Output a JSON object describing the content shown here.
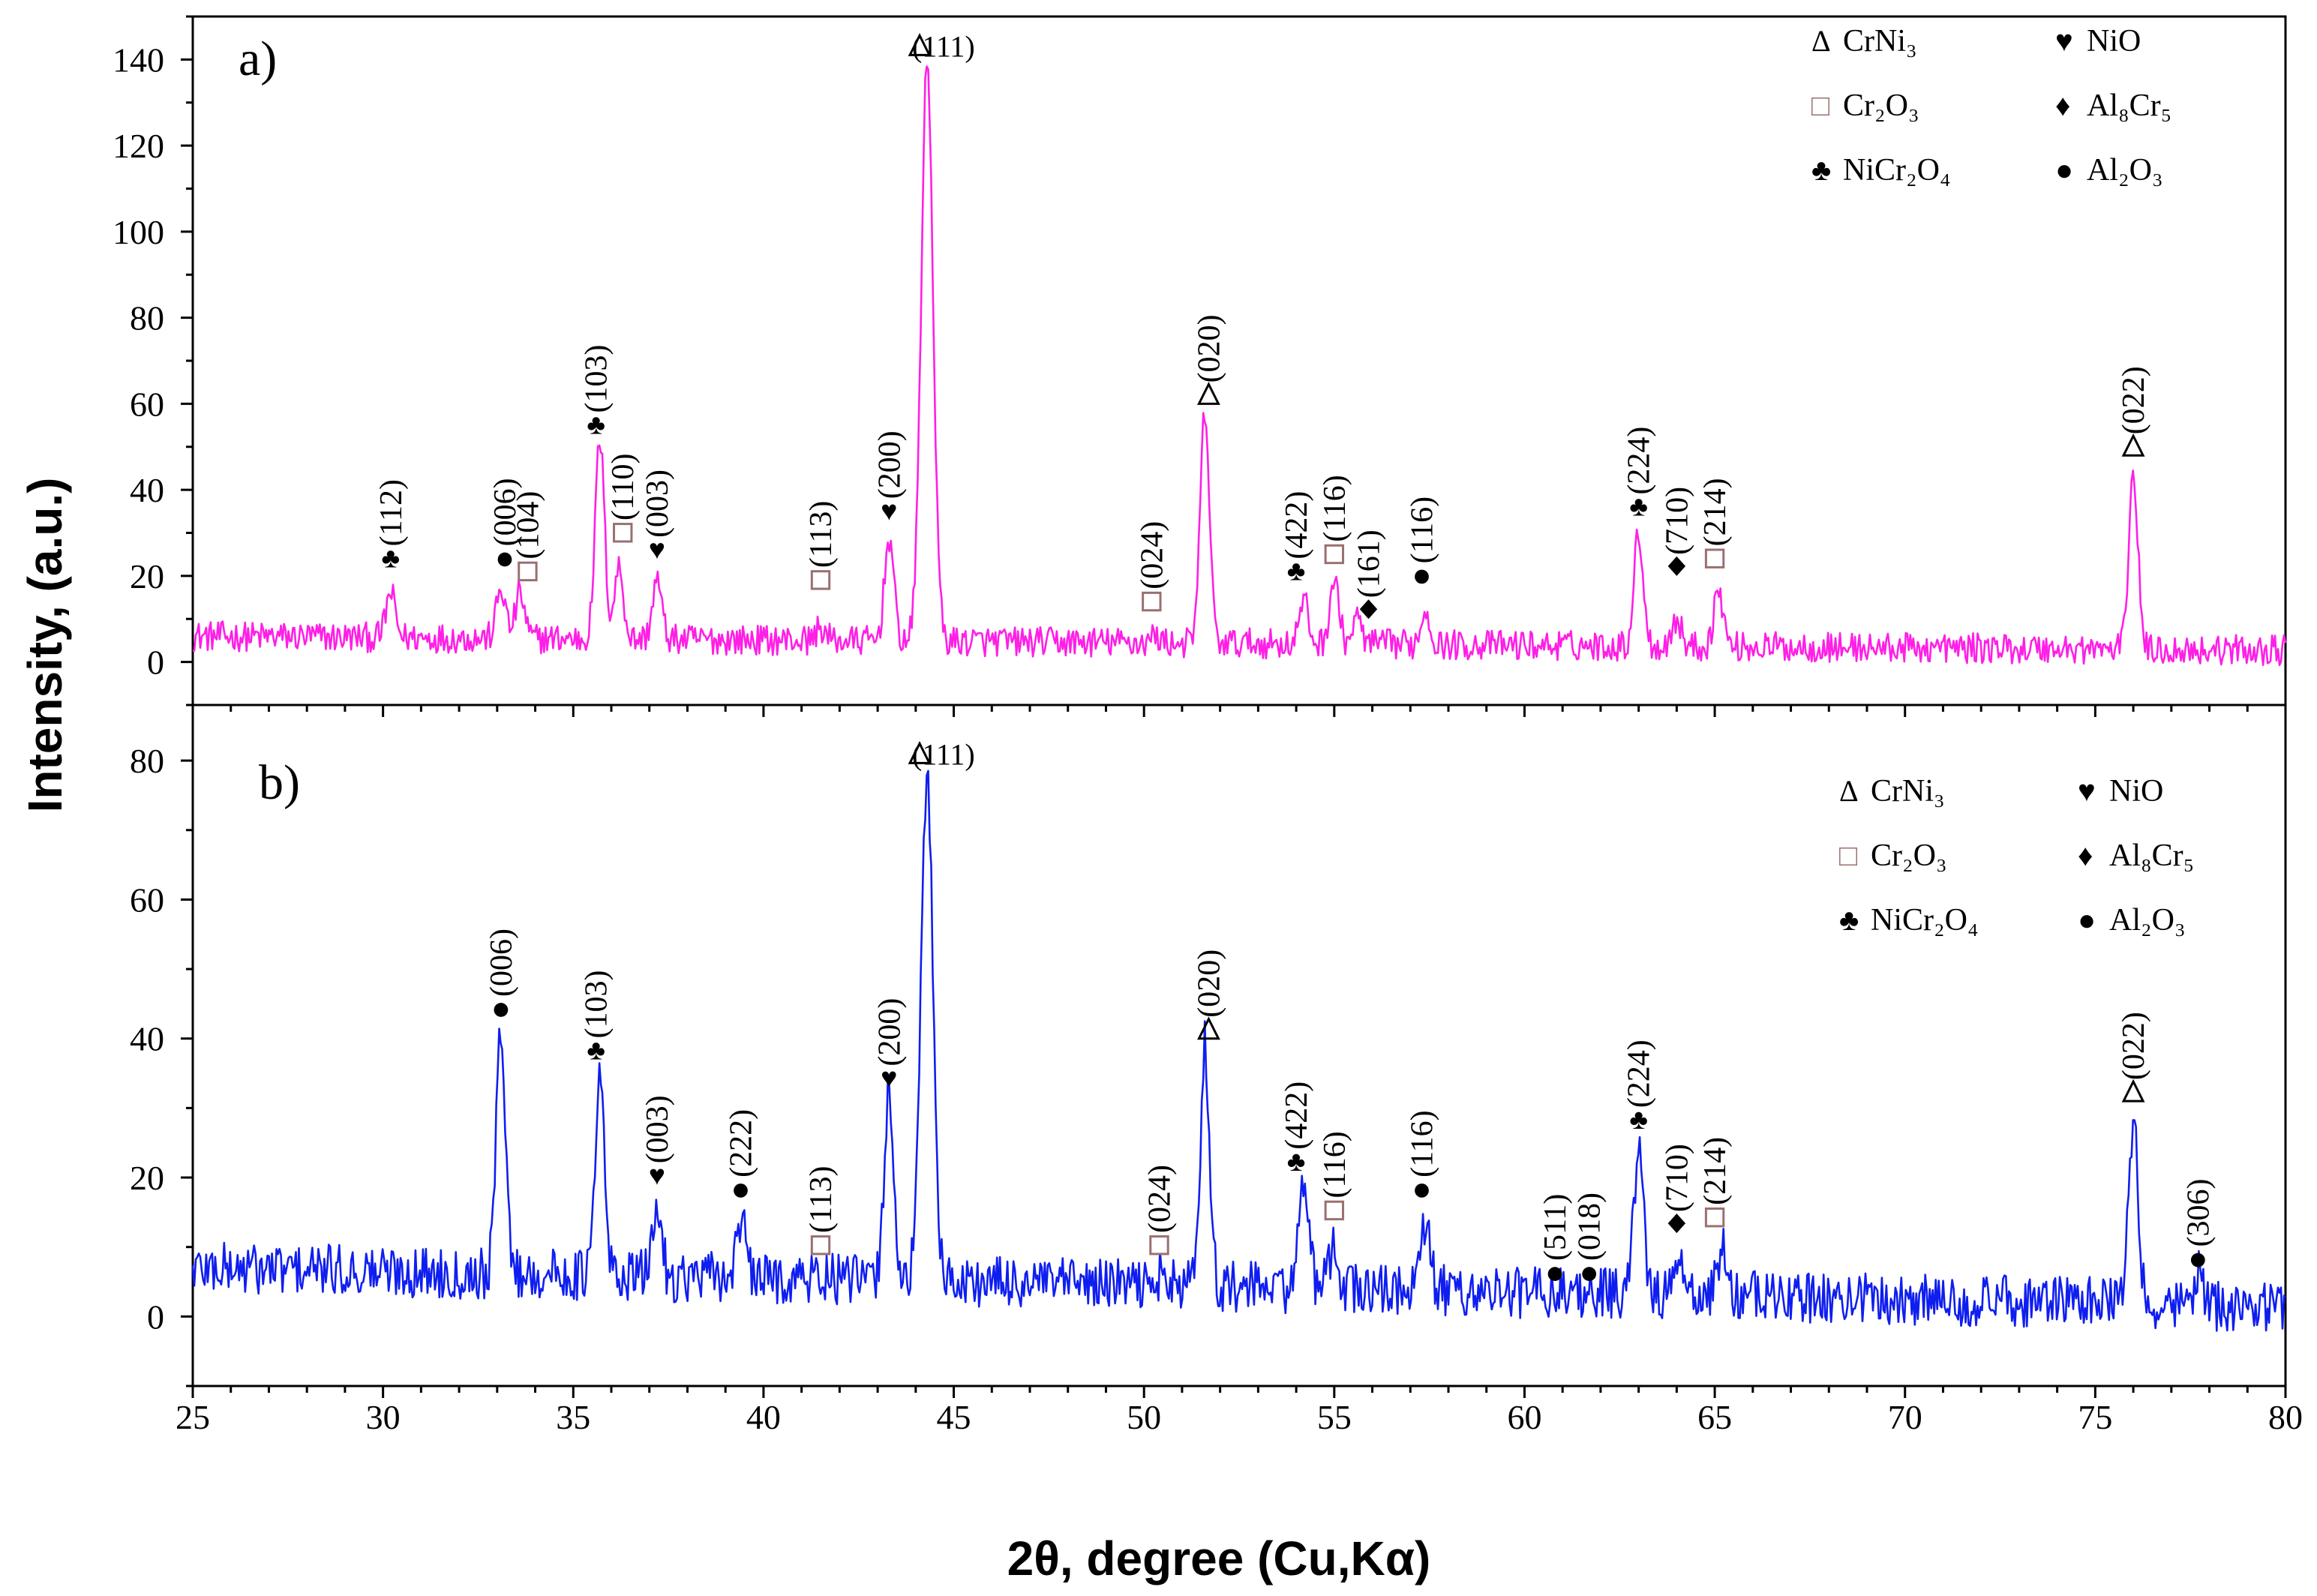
{
  "axis": {
    "xlabel": "2θ, degree (Cu,Kα)",
    "ylabel": "Intensity, (a.u.)",
    "xlim": [
      25,
      80
    ],
    "xticks": [
      "25",
      "30",
      "35",
      "40",
      "45",
      "50",
      "55",
      "60",
      "65",
      "70",
      "75",
      "80"
    ]
  },
  "chart_data": [
    {
      "type": "line",
      "panel_label": "a)",
      "series_color": "#ff1fe6",
      "ylim": [
        -10,
        150
      ],
      "yticks": [
        "0",
        "20",
        "40",
        "60",
        "80",
        "100",
        "120",
        "140"
      ],
      "peaks": [
        [
          30.2,
          16
        ],
        [
          33.1,
          17
        ],
        [
          33.6,
          16
        ],
        [
          35.7,
          52
        ],
        [
          36.2,
          22
        ],
        [
          37.2,
          19
        ],
        [
          41.5,
          8
        ],
        [
          43.3,
          29
        ],
        [
          44.3,
          139
        ],
        [
          50.3,
          6
        ],
        [
          51.6,
          58
        ],
        [
          54.2,
          14
        ],
        [
          55.0,
          19
        ],
        [
          55.6,
          10
        ],
        [
          57.4,
          12
        ],
        [
          63.0,
          30
        ],
        [
          64.0,
          10
        ],
        [
          65.1,
          17
        ],
        [
          76.0,
          44
        ]
      ],
      "legend": [
        {
          "symbol": "Δ",
          "label": "CrNi₃"
        },
        {
          "symbol": "♥",
          "label": "NiO"
        },
        {
          "symbol": "□",
          "label": "Cr₂O₃"
        },
        {
          "symbol": "♦",
          "label": "Al₈Cr₅"
        },
        {
          "symbol": "♣",
          "label": "NiCr₂O₄"
        },
        {
          "symbol": "●",
          "label": "Al₂O₃"
        }
      ],
      "annotations": [
        {
          "x": 30.2,
          "y": 22,
          "marker": "club",
          "label": "(112)"
        },
        {
          "x": 33.2,
          "y": 22,
          "marker": "dot",
          "label": "(006)"
        },
        {
          "x": 33.8,
          "y": 19,
          "marker": "square",
          "label": "(104)"
        },
        {
          "x": 35.6,
          "y": 53,
          "marker": "club",
          "label": "(103)"
        },
        {
          "x": 36.3,
          "y": 28,
          "marker": "square",
          "label": "(110)"
        },
        {
          "x": 37.2,
          "y": 24,
          "marker": "heart",
          "label": "(003)"
        },
        {
          "x": 41.5,
          "y": 17,
          "marker": "square",
          "label": "(113)"
        },
        {
          "x": 43.3,
          "y": 33,
          "marker": "heart",
          "label": "(200)"
        },
        {
          "x": 44.3,
          "y": 140,
          "marker": "delta",
          "label": "(111)",
          "layout": "horizontal"
        },
        {
          "x": 50.2,
          "y": 12,
          "marker": "square",
          "label": "(024)"
        },
        {
          "x": 51.7,
          "y": 60,
          "marker": "delta",
          "label": "(020)"
        },
        {
          "x": 54.0,
          "y": 19,
          "marker": "club",
          "label": "(422)"
        },
        {
          "x": 55.0,
          "y": 23,
          "marker": "square",
          "label": "(116)"
        },
        {
          "x": 55.9,
          "y": 10,
          "marker": "diamond",
          "label": "(161)"
        },
        {
          "x": 57.3,
          "y": 18,
          "marker": "dot",
          "label": "(116)"
        },
        {
          "x": 63.0,
          "y": 34,
          "marker": "club",
          "label": "(224)"
        },
        {
          "x": 64.0,
          "y": 20,
          "marker": "diamond",
          "label": "(710)"
        },
        {
          "x": 65.0,
          "y": 22,
          "marker": "square",
          "label": "(214)"
        },
        {
          "x": 76.0,
          "y": 48,
          "marker": "delta",
          "label": "(022)"
        }
      ]
    },
    {
      "type": "line",
      "panel_label": "b)",
      "series_color": "#0f1ef0",
      "ylim": [
        -10,
        88
      ],
      "yticks": [
        "0",
        "20",
        "40",
        "60",
        "80"
      ],
      "peaks": [
        [
          33.1,
          42
        ],
        [
          35.7,
          34
        ],
        [
          37.2,
          16
        ],
        [
          39.4,
          14
        ],
        [
          41.5,
          6
        ],
        [
          43.3,
          33
        ],
        [
          44.3,
          78
        ],
        [
          50.4,
          6
        ],
        [
          51.6,
          39
        ],
        [
          54.2,
          21
        ],
        [
          55.0,
          10
        ],
        [
          57.4,
          13
        ],
        [
          60.8,
          4
        ],
        [
          61.7,
          4
        ],
        [
          63.0,
          25
        ],
        [
          64.0,
          8
        ],
        [
          65.2,
          10
        ],
        [
          76.0,
          28
        ],
        [
          77.7,
          6
        ]
      ],
      "legend": [
        {
          "symbol": "Δ",
          "label": "CrNi₃"
        },
        {
          "symbol": "♥",
          "label": "NiO"
        },
        {
          "symbol": "□",
          "label": "Cr₂O₃"
        },
        {
          "symbol": "♦",
          "label": "Al₈Cr₅"
        },
        {
          "symbol": "♣",
          "label": "NiCr₂O₄"
        },
        {
          "symbol": "●",
          "label": "Al₂O₃"
        }
      ],
      "annotations": [
        {
          "x": 33.1,
          "y": 43,
          "marker": "dot",
          "label": "(006)"
        },
        {
          "x": 35.6,
          "y": 37,
          "marker": "club",
          "label": "(103)"
        },
        {
          "x": 37.2,
          "y": 19,
          "marker": "heart",
          "label": "(003)"
        },
        {
          "x": 39.4,
          "y": 17,
          "marker": "dot",
          "label": "(222)"
        },
        {
          "x": 41.5,
          "y": 9,
          "marker": "square",
          "label": "(113)"
        },
        {
          "x": 43.3,
          "y": 33,
          "marker": "heart",
          "label": "(200)"
        },
        {
          "x": 44.3,
          "y": 79,
          "marker": "delta",
          "label": "(111)",
          "layout": "horizontal"
        },
        {
          "x": 50.4,
          "y": 9,
          "marker": "square",
          "label": "(024)"
        },
        {
          "x": 51.7,
          "y": 40,
          "marker": "delta",
          "label": "(020)"
        },
        {
          "x": 54.0,
          "y": 21,
          "marker": "club",
          "label": "(422)"
        },
        {
          "x": 55.0,
          "y": 14,
          "marker": "square",
          "label": "(116)"
        },
        {
          "x": 57.3,
          "y": 17,
          "marker": "dot",
          "label": "(116)"
        },
        {
          "x": 60.8,
          "y": 5,
          "marker": "dot",
          "label": "(511)"
        },
        {
          "x": 61.7,
          "y": 5,
          "marker": "dot",
          "label": "(018)"
        },
        {
          "x": 63.0,
          "y": 27,
          "marker": "club",
          "label": "(224)"
        },
        {
          "x": 64.0,
          "y": 12,
          "marker": "diamond",
          "label": "(710)"
        },
        {
          "x": 65.0,
          "y": 13,
          "marker": "square",
          "label": "(214)"
        },
        {
          "x": 76.0,
          "y": 31,
          "marker": "delta",
          "label": "(022)"
        },
        {
          "x": 77.7,
          "y": 7,
          "marker": "dot",
          "label": "(306)"
        }
      ]
    }
  ]
}
